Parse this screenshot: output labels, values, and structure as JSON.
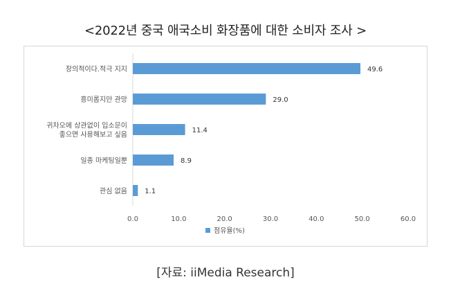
{
  "title": "<2022년 중국 애국소비 화장품에 대한 소비자 조사 >",
  "source": "[자료: iiMedia Research]",
  "colors": {
    "bar": "#5b9bd5",
    "axis": "#d9d9d9"
  },
  "chart_data": {
    "type": "bar",
    "orientation": "horizontal",
    "categories": [
      [
        "창의적이다.적극 지지"
      ],
      [
        "흥미롭지만 관망"
      ],
      [
        "귀차오에 상관없이 입소문이",
        "좋으면 사용해보고 싶음"
      ],
      [
        "일종 마케팅일뿐"
      ],
      [
        "관심 없음"
      ]
    ],
    "series": [
      {
        "name": "점유율(%)",
        "values": [
          49.6,
          29.0,
          11.4,
          8.9,
          1.1
        ]
      }
    ],
    "value_labels": [
      "49.6",
      "29.0",
      "11.4",
      "8.9",
      "1.1"
    ],
    "xticks": [
      "0.0",
      "10.0",
      "20.0",
      "30.0",
      "40.0",
      "50.0",
      "60.0"
    ],
    "xlim": [
      0,
      60
    ],
    "grid": false,
    "legend": "bottom-center"
  }
}
